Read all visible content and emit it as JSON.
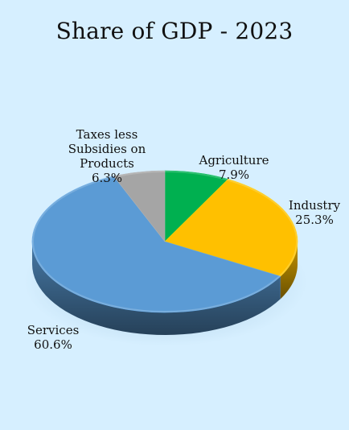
{
  "chart_data": {
    "type": "pie",
    "title": "Share of GDP - 2023",
    "style": "3d-exploded-tilted",
    "start_category": "Agriculture",
    "direction": "clockwise",
    "categories": [
      "Agriculture",
      "Industry",
      "Services",
      "Taxes less Subsidies on Products"
    ],
    "values": [
      7.9,
      25.3,
      60.6,
      6.3
    ],
    "value_unit": "%",
    "data_labels": [
      {
        "category_lines": [
          "Agriculture"
        ],
        "value": "7.9%"
      },
      {
        "category_lines": [
          "Industry"
        ],
        "value": "25.3%"
      },
      {
        "category_lines": [
          "Services"
        ],
        "value": "60.6%"
      },
      {
        "category_lines": [
          "Taxes less",
          "Subsidies on",
          "Products"
        ],
        "value": "6.3%"
      }
    ],
    "colors": [
      "#00b050",
      "#ffc000",
      "#5b9bd5",
      "#a5a5a5"
    ],
    "legend": "none",
    "grid": false
  },
  "background_color": "#d6efff"
}
